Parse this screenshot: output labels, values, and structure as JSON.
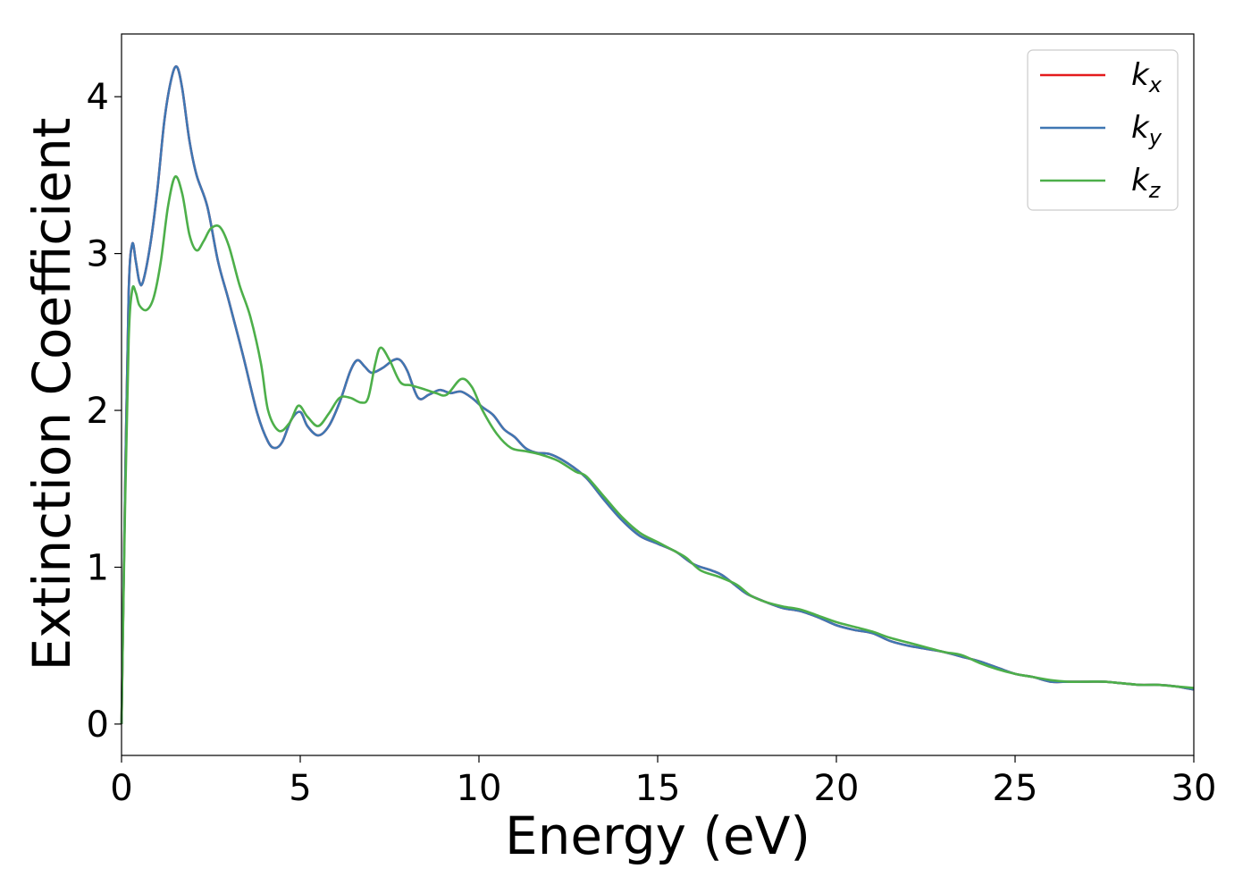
{
  "chart_data": {
    "type": "line",
    "xlabel": "Energy (eV)",
    "ylabel": "Extinction Coefficient",
    "xlim": [
      0,
      30
    ],
    "ylim": [
      -0.2,
      4.4
    ],
    "xticks": [
      "0",
      "5",
      "10",
      "15",
      "20",
      "25",
      "30"
    ],
    "yticks": [
      "0",
      "1",
      "2",
      "3",
      "4"
    ],
    "grid": false,
    "legend_position": "top-right",
    "series": [
      {
        "name": "k_x",
        "label_main": "k",
        "label_sub": "x",
        "color": "#e41a1c",
        "x": [
          0,
          0.1,
          0.2,
          0.3,
          0.4,
          0.5,
          0.6,
          0.8,
          1.0,
          1.2,
          1.4,
          1.55,
          1.7,
          1.9,
          2.1,
          2.4,
          2.7,
          3.0,
          3.4,
          3.8,
          4.1,
          4.3,
          4.5,
          4.75,
          5.0,
          5.2,
          5.5,
          5.8,
          6.1,
          6.4,
          6.6,
          6.8,
          7.0,
          7.3,
          7.6,
          7.8,
          8.0,
          8.3,
          8.6,
          8.9,
          9.2,
          9.5,
          9.8,
          10.1,
          10.4,
          10.7,
          11.0,
          11.3,
          11.6,
          12.0,
          12.5,
          13.0,
          13.5,
          14.0,
          14.5,
          15.0,
          15.5,
          16.0,
          16.5,
          16.8,
          17.2,
          17.5,
          18.0,
          18.5,
          19.0,
          19.5,
          20.0,
          20.5,
          21.0,
          21.5,
          22.0,
          22.5,
          23.0,
          23.5,
          24.0,
          24.5,
          25.0,
          25.5,
          26.0,
          26.5,
          27.0,
          27.5,
          28.0,
          28.5,
          29.0,
          29.5,
          30.0
        ],
        "y": [
          0.0,
          1.5,
          2.75,
          3.06,
          2.95,
          2.82,
          2.82,
          3.05,
          3.4,
          3.85,
          4.12,
          4.19,
          4.05,
          3.72,
          3.5,
          3.3,
          2.95,
          2.7,
          2.35,
          1.98,
          1.8,
          1.76,
          1.8,
          1.94,
          1.99,
          1.9,
          1.84,
          1.9,
          2.05,
          2.25,
          2.32,
          2.28,
          2.24,
          2.27,
          2.32,
          2.32,
          2.25,
          2.08,
          2.1,
          2.13,
          2.11,
          2.12,
          2.08,
          2.02,
          1.97,
          1.88,
          1.83,
          1.76,
          1.73,
          1.72,
          1.66,
          1.57,
          1.43,
          1.3,
          1.2,
          1.15,
          1.1,
          1.02,
          0.98,
          0.95,
          0.88,
          0.83,
          0.78,
          0.74,
          0.72,
          0.68,
          0.63,
          0.6,
          0.58,
          0.53,
          0.5,
          0.48,
          0.46,
          0.43,
          0.4,
          0.36,
          0.32,
          0.3,
          0.27,
          0.27,
          0.27,
          0.27,
          0.26,
          0.25,
          0.25,
          0.24,
          0.22
        ]
      },
      {
        "name": "k_y",
        "label_main": "k",
        "label_sub": "y",
        "color": "#3f77b3",
        "x": [
          0,
          0.1,
          0.2,
          0.3,
          0.4,
          0.5,
          0.6,
          0.8,
          1.0,
          1.2,
          1.4,
          1.55,
          1.7,
          1.9,
          2.1,
          2.4,
          2.7,
          3.0,
          3.4,
          3.8,
          4.1,
          4.3,
          4.5,
          4.75,
          5.0,
          5.2,
          5.5,
          5.8,
          6.1,
          6.4,
          6.6,
          6.8,
          7.0,
          7.3,
          7.6,
          7.8,
          8.0,
          8.3,
          8.6,
          8.9,
          9.2,
          9.5,
          9.8,
          10.1,
          10.4,
          10.7,
          11.0,
          11.3,
          11.6,
          12.0,
          12.5,
          13.0,
          13.5,
          14.0,
          14.5,
          15.0,
          15.5,
          16.0,
          16.5,
          16.8,
          17.2,
          17.5,
          18.0,
          18.5,
          19.0,
          19.5,
          20.0,
          20.5,
          21.0,
          21.5,
          22.0,
          22.5,
          23.0,
          23.5,
          24.0,
          24.5,
          25.0,
          25.5,
          26.0,
          26.5,
          27.0,
          27.5,
          28.0,
          28.5,
          29.0,
          29.5,
          30.0
        ],
        "y": [
          0.0,
          1.5,
          2.75,
          3.06,
          2.95,
          2.82,
          2.82,
          3.05,
          3.4,
          3.85,
          4.12,
          4.19,
          4.05,
          3.72,
          3.5,
          3.3,
          2.95,
          2.7,
          2.35,
          1.98,
          1.8,
          1.76,
          1.8,
          1.94,
          1.99,
          1.9,
          1.84,
          1.9,
          2.05,
          2.25,
          2.32,
          2.28,
          2.24,
          2.27,
          2.32,
          2.32,
          2.25,
          2.08,
          2.1,
          2.13,
          2.11,
          2.12,
          2.08,
          2.02,
          1.97,
          1.88,
          1.83,
          1.76,
          1.73,
          1.72,
          1.66,
          1.57,
          1.43,
          1.3,
          1.2,
          1.15,
          1.1,
          1.02,
          0.98,
          0.95,
          0.88,
          0.83,
          0.78,
          0.74,
          0.72,
          0.68,
          0.63,
          0.6,
          0.58,
          0.53,
          0.5,
          0.48,
          0.46,
          0.43,
          0.4,
          0.36,
          0.32,
          0.3,
          0.27,
          0.27,
          0.27,
          0.27,
          0.26,
          0.25,
          0.25,
          0.24,
          0.22
        ]
      },
      {
        "name": "k_z",
        "label_main": "k",
        "label_sub": "z",
        "color": "#4daf4a",
        "x": [
          0,
          0.1,
          0.2,
          0.3,
          0.4,
          0.5,
          0.7,
          0.9,
          1.1,
          1.3,
          1.5,
          1.7,
          1.9,
          2.1,
          2.3,
          2.5,
          2.75,
          3.0,
          3.3,
          3.6,
          3.9,
          4.1,
          4.4,
          4.7,
          4.95,
          5.2,
          5.5,
          5.8,
          6.1,
          6.4,
          6.7,
          6.9,
          7.1,
          7.25,
          7.5,
          7.8,
          8.1,
          8.4,
          8.8,
          9.1,
          9.5,
          9.8,
          10.1,
          10.5,
          10.9,
          11.3,
          11.7,
          12.2,
          12.7,
          13.0,
          13.5,
          14.0,
          14.5,
          15.0,
          15.5,
          15.8,
          16.2,
          16.7,
          17.2,
          17.6,
          18.0,
          18.5,
          19.0,
          19.5,
          20.0,
          20.5,
          21.0,
          21.5,
          22.0,
          22.5,
          23.0,
          23.5,
          24.0,
          24.5,
          25.0,
          25.5,
          26.0,
          26.5,
          27.0,
          27.5,
          28.0,
          28.5,
          29.0,
          29.5,
          30.0
        ],
        "y": [
          0.0,
          1.4,
          2.45,
          2.77,
          2.75,
          2.67,
          2.64,
          2.72,
          2.95,
          3.3,
          3.49,
          3.38,
          3.12,
          3.02,
          3.08,
          3.16,
          3.17,
          3.05,
          2.8,
          2.6,
          2.3,
          2.0,
          1.87,
          1.92,
          2.03,
          1.96,
          1.9,
          1.98,
          2.08,
          2.08,
          2.05,
          2.08,
          2.3,
          2.4,
          2.32,
          2.18,
          2.16,
          2.14,
          2.11,
          2.1,
          2.2,
          2.15,
          2.0,
          1.85,
          1.76,
          1.74,
          1.72,
          1.68,
          1.61,
          1.58,
          1.45,
          1.32,
          1.22,
          1.16,
          1.1,
          1.06,
          0.98,
          0.94,
          0.89,
          0.82,
          0.78,
          0.75,
          0.73,
          0.69,
          0.65,
          0.62,
          0.59,
          0.55,
          0.52,
          0.49,
          0.46,
          0.44,
          0.39,
          0.35,
          0.32,
          0.3,
          0.28,
          0.27,
          0.27,
          0.27,
          0.26,
          0.25,
          0.25,
          0.24,
          0.23
        ]
      }
    ]
  }
}
